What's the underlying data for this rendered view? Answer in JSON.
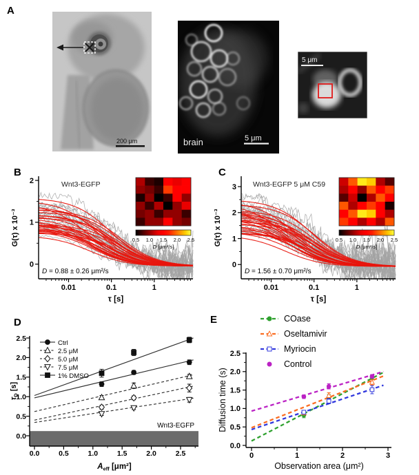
{
  "panels": {
    "a": {
      "label": "A"
    },
    "b": {
      "label": "B"
    },
    "c": {
      "label": "C"
    },
    "d": {
      "label": "D"
    },
    "e": {
      "label": "E"
    }
  },
  "panel_a": {
    "embryo": {
      "scale_bar": "200 μm"
    },
    "brain": {
      "label": "brain",
      "scale_bar": "5 μm"
    },
    "zoom": {
      "scale_bar": "5 μm"
    }
  },
  "chart_data": [
    {
      "id": "B",
      "type": "line",
      "subtype": "fcs-autocorrelation",
      "title": "Wnt3-EGFP",
      "xlabel": "τ [s]",
      "ylabel": "G(τ) x 10⁻³",
      "xscale": "log",
      "xlim": [
        0.002,
        8
      ],
      "ylim": [
        -0.35,
        2.1
      ],
      "xticks": [
        0.01,
        0.1,
        1
      ],
      "xtick_labels": [
        "0.01",
        "0.1",
        "1"
      ],
      "yticks": [
        0,
        1,
        2
      ],
      "annotation_var": "D",
      "annotation_rest": " = 0.88 ± 0.26 μm²/s",
      "fit_summary": {
        "D_mean": 0.88,
        "D_sd": 0.26,
        "units": "μm²/s"
      },
      "curves": {
        "n_fits": 30,
        "n_raw": 26,
        "amp_min": 0.72,
        "amp_max": 1.65,
        "taud_min": 0.028,
        "taud_max": 0.17,
        "baseline": -0.05,
        "noise_base": 0.03,
        "noise_slope": 0.17,
        "raw_amp_boost": 0.18,
        "fit_color": "#e8150d",
        "raw_color": "#a3a3a3",
        "seed": 7
      },
      "inset": {
        "grid": [
          [
            1.1,
            0.7,
            0.6,
            1.5,
            1.3,
            1.6
          ],
          [
            1.0,
            0.9,
            0.7,
            1.8,
            1.5,
            1.4
          ],
          [
            0.6,
            1.0,
            0.5,
            0.7,
            1.5,
            1.0
          ],
          [
            1.0,
            0.7,
            1.1,
            0.5,
            1.0,
            1.3
          ],
          [
            0.9,
            1.0,
            0.7,
            1.0,
            1.0,
            0.7
          ],
          [
            0.7,
            1.0,
            1.0,
            1.4,
            1.0,
            0.9
          ]
        ],
        "vmin": 0.5,
        "vmax": 2.5,
        "colorbar_ticks": [
          "0.5",
          "1.0",
          "1.5",
          "2.0",
          "2.5"
        ],
        "label_var": "D",
        "label_rest": " [μm²/s]"
      }
    },
    {
      "id": "C",
      "type": "line",
      "subtype": "fcs-autocorrelation",
      "title": "Wnt3-EGFP 5 μM C59",
      "xlabel": "τ [s]",
      "ylabel": "G(τ) x 10⁻³",
      "xscale": "log",
      "xlim": [
        0.002,
        8
      ],
      "ylim": [
        -0.55,
        3.4
      ],
      "xticks": [
        0.01,
        0.1,
        1
      ],
      "xtick_labels": [
        "0.01",
        "0.1",
        "1"
      ],
      "yticks": [
        0,
        1,
        2,
        3
      ],
      "annotation_var": "D",
      "annotation_rest": " = 1.56 ± 0.70 μm²/s",
      "fit_summary": {
        "D_mean": 1.56,
        "D_sd": 0.7,
        "units": "μm²/s"
      },
      "curves": {
        "n_fits": 30,
        "n_raw": 26,
        "amp_min": 1.15,
        "amp_max": 2.7,
        "taud_min": 0.02,
        "taud_max": 0.13,
        "baseline": -0.08,
        "noise_base": 0.035,
        "noise_slope": 0.21,
        "raw_amp_boost": 0.18,
        "fit_color": "#e8150d",
        "raw_color": "#a3a3a3",
        "seed": 21
      },
      "inset": {
        "grid": [
          [
            1.2,
            1.9,
            2.4,
            2.3,
            1.1,
            0.8
          ],
          [
            1.1,
            1.5,
            1.0,
            1.9,
            1.4,
            1.8
          ],
          [
            0.8,
            1.2,
            0.5,
            1.1,
            1.9,
            1.5
          ],
          [
            1.9,
            1.1,
            1.5,
            1.8,
            1.5,
            0.6
          ],
          [
            1.5,
            1.9,
            2.4,
            2.3,
            1.4,
            1.1
          ],
          [
            1.8,
            1.4,
            1.1,
            1.5,
            1.1,
            1.9
          ]
        ],
        "vmin": 0.5,
        "vmax": 2.5,
        "colorbar_ticks": [
          "0.5",
          "1.0",
          "1.5",
          "2.0",
          "2.5"
        ],
        "label_var": "D",
        "label_rest": " [μm²/s]"
      }
    },
    {
      "id": "D",
      "type": "scatter",
      "xlabel_var": "A",
      "xlabel_sub": "eff",
      "xlabel_rest": " [μm²]",
      "ylabel_var": "τ",
      "ylabel_sub": "D",
      "ylabel_rest": " [s]",
      "xlim": [
        0,
        2.8
      ],
      "ylim": [
        -0.26,
        2.55
      ],
      "xticks": [
        0,
        0.5,
        1,
        1.5,
        2,
        2.5
      ],
      "yticks": [
        0,
        0.5,
        1,
        1.5,
        2,
        2.5
      ],
      "x": [
        1.15,
        1.7,
        2.65
      ],
      "series": [
        {
          "name": "Ctrl",
          "marker": "circle",
          "fill": "filled",
          "line": "solid",
          "values": [
            1.32,
            1.62,
            1.88
          ],
          "errors": [
            0.06,
            0.05,
            0.06
          ],
          "fit": {
            "x0": 0,
            "y0": 0.97,
            "x1": 2.72,
            "y1": 1.94
          }
        },
        {
          "name": "2.5 μM",
          "marker": "triangle-up",
          "fill": "open",
          "line": "dashed",
          "values": [
            0.98,
            1.28,
            1.52
          ],
          "errors": [
            0.05,
            0.07,
            0.05
          ],
          "fit": {
            "x0": 0,
            "y0": 0.62,
            "x1": 2.72,
            "y1": 1.56
          }
        },
        {
          "name": "5.0 μM",
          "marker": "diamond",
          "fill": "open",
          "line": "dashed",
          "values": [
            0.73,
            0.97,
            1.22
          ],
          "errors": [
            0.05,
            0.05,
            0.1
          ],
          "fit": {
            "x0": 0,
            "y0": 0.4,
            "x1": 2.72,
            "y1": 1.27
          }
        },
        {
          "name": "7.5 μM",
          "marker": "triangle-down",
          "fill": "open",
          "line": "dashed",
          "values": [
            0.56,
            0.71,
            0.92
          ],
          "errors": [
            0.04,
            0.04,
            0.06
          ],
          "fit": {
            "x0": 0,
            "y0": 0.34,
            "x1": 2.72,
            "y1": 0.96
          }
        },
        {
          "name": "1% DMSO",
          "marker": "square",
          "fill": "filled",
          "line": "solid",
          "values": [
            1.6,
            2.13,
            2.45
          ],
          "errors": [
            0.1,
            0.08,
            0.07
          ],
          "fit": {
            "x0": 0,
            "y0": 1.03,
            "x1": 2.72,
            "y1": 2.5
          }
        }
      ],
      "annotation": "Wnt3-EGFP",
      "band": {
        "ymin": -0.26,
        "ymax": 0.12,
        "color": "#6b6b6b"
      }
    },
    {
      "id": "E",
      "type": "scatter",
      "xlabel": "Observation area (μm²)",
      "ylabel": "Diffusion time (s)",
      "xlim": [
        0,
        3.07
      ],
      "ylim": [
        -0.06,
        2.58
      ],
      "xticks": [
        0,
        1,
        2,
        3
      ],
      "yticks": [
        0,
        0.5,
        1,
        1.5,
        2,
        2.5
      ],
      "x": [
        1.15,
        1.7,
        2.65
      ],
      "series": [
        {
          "name": "COase",
          "color": "#2fa12f",
          "marker": "circle",
          "fill": "filled",
          "values": [
            0.82,
            1.3,
            1.85
          ],
          "errors": [
            0.07,
            0.08,
            0.06
          ],
          "fit": {
            "x0": 0,
            "y0": 0.12,
            "x1": 2.9,
            "y1": 1.98
          }
        },
        {
          "name": "Oseltamivir",
          "color": "#fb6d22",
          "marker": "triangle-up",
          "fill": "open",
          "values": [
            0.88,
            1.35,
            1.71
          ],
          "errors": [
            0.05,
            0.08,
            0.07
          ],
          "fit": {
            "x0": 0,
            "y0": 0.48,
            "x1": 2.9,
            "y1": 1.88
          }
        },
        {
          "name": "Myriocin",
          "color": "#3138dd",
          "marker": "square",
          "fill": "open",
          "values": [
            0.9,
            1.2,
            1.51
          ],
          "errors": [
            0.05,
            0.07,
            0.11
          ],
          "fit": {
            "x0": 0,
            "y0": 0.43,
            "x1": 2.9,
            "y1": 1.63
          }
        },
        {
          "name": "Control",
          "color": "#bb22c4",
          "marker": "circle",
          "fill": "filled",
          "legend_line": false,
          "values": [
            1.32,
            1.6,
            1.87
          ],
          "errors": [
            0.05,
            0.07,
            0.05
          ],
          "fit": {
            "x0": 0,
            "y0": 0.93,
            "x1": 2.9,
            "y1": 2.0
          }
        }
      ]
    }
  ]
}
